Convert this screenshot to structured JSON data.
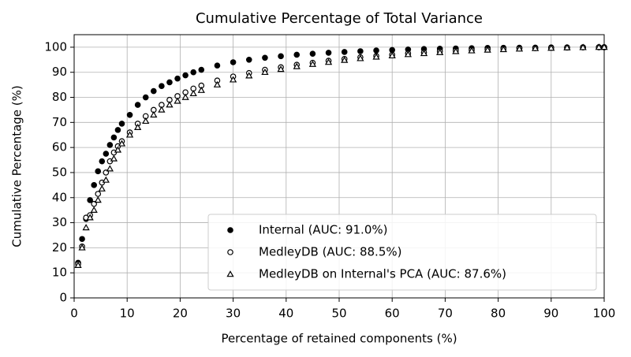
{
  "chart_data": {
    "type": "scatter",
    "title": "Cumulative Percentage of Total Variance",
    "x_label": "Percentage of retained components (%)",
    "y_label": "Cumulative Percentage (%)",
    "x": [
      0.75,
      1.5,
      2.25,
      3,
      3.75,
      4.5,
      5.25,
      6,
      6.75,
      7.5,
      8.25,
      9,
      10.5,
      12,
      13.5,
      15,
      16.5,
      18,
      19.5,
      21,
      22.5,
      24,
      27,
      30,
      33,
      36,
      39,
      42,
      45,
      48,
      51,
      54,
      57,
      60,
      63,
      66,
      69,
      72,
      75,
      78,
      81,
      84,
      87,
      90,
      93,
      96,
      99,
      100
    ],
    "series": [
      {
        "name": "Internal (AUC: 91.0%)",
        "color": "#000000",
        "marker": "filled-circle",
        "values": [
          14,
          23.5,
          31.5,
          39,
          45,
          50.5,
          54.5,
          57.5,
          61,
          64,
          67,
          69.5,
          73,
          77,
          80,
          82.5,
          84.5,
          86,
          87.5,
          88.8,
          90,
          91,
          92.7,
          94,
          95,
          95.8,
          96.4,
          97,
          97.4,
          97.8,
          98.1,
          98.4,
          98.7,
          98.9,
          99.1,
          99.3,
          99.4,
          99.5,
          99.6,
          99.7,
          99.75,
          99.8,
          99.85,
          99.9,
          99.93,
          99.96,
          99.99,
          100
        ]
      },
      {
        "name": "MedleyDB (AUC: 88.5%)",
        "color": "#000000",
        "marker": "open-circle",
        "values": [
          13.5,
          20.5,
          32,
          33,
          37.5,
          41.5,
          46,
          50,
          54.5,
          58,
          60.5,
          62.5,
          66,
          69.5,
          72.5,
          75,
          77,
          79,
          80.5,
          82,
          83.5,
          84.7,
          86.7,
          88.3,
          89.7,
          91,
          92,
          93,
          93.8,
          94.6,
          95.3,
          96,
          96.5,
          97,
          97.5,
          97.9,
          98.3,
          98.6,
          98.9,
          99.1,
          99.3,
          99.5,
          99.6,
          99.75,
          99.85,
          99.95,
          100,
          100
        ]
      },
      {
        "name": "MedleyDB on Internal's PCA (AUC: 87.6%)",
        "color": "#000000",
        "marker": "open-triangle",
        "values": [
          13,
          20,
          28,
          32,
          35,
          39,
          43.5,
          47,
          51.5,
          55.5,
          59,
          61.5,
          65,
          68,
          70.5,
          73,
          75,
          77,
          78.5,
          80,
          81.5,
          82.8,
          85,
          87,
          88.6,
          90,
          91.2,
          92.3,
          93.2,
          94,
          94.8,
          95.5,
          96.1,
          96.6,
          97.1,
          97.5,
          97.9,
          98.3,
          98.6,
          98.9,
          99.1,
          99.3,
          99.5,
          99.65,
          99.8,
          99.9,
          99.98,
          100
        ]
      }
    ],
    "xlim": [
      0,
      100
    ],
    "xticks": [
      0,
      10,
      20,
      30,
      40,
      50,
      60,
      70,
      80,
      90,
      100
    ],
    "ylim": [
      0,
      105
    ],
    "yticks": [
      0,
      10,
      20,
      30,
      40,
      50,
      60,
      70,
      80,
      90,
      100
    ],
    "grid": true,
    "legend": "lower right"
  }
}
